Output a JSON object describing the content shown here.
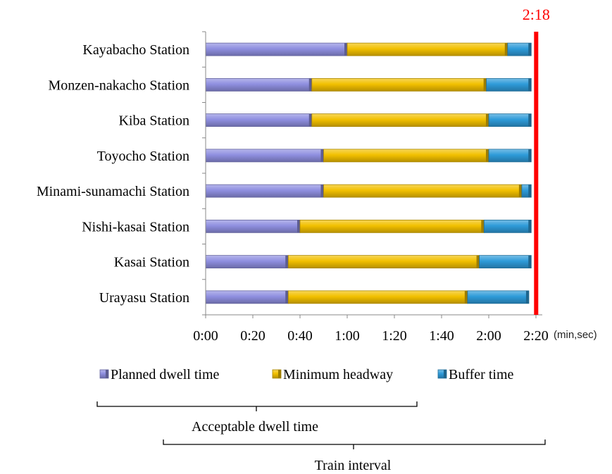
{
  "chart_data": {
    "type": "bar",
    "orientation": "horizontal",
    "stacked": true,
    "categories": [
      "Kayabacho Station",
      "Monzen-nakacho Station",
      "Kiba Station",
      "Toyocho Station",
      "Minami-sunamachi Station",
      "Nishi-kasai Station",
      "Kasai Station",
      "Urayasu Station"
    ],
    "series": [
      {
        "name": "Planned dwell time",
        "color": "#8f8fe0",
        "values": [
          60,
          45,
          45,
          50,
          50,
          40,
          35,
          35
        ]
      },
      {
        "name": "Minimum headway",
        "color": "#f2c000",
        "values": [
          68,
          74,
          75,
          70,
          84,
          78,
          81,
          76
        ]
      },
      {
        "name": "Buffer time",
        "color": "#2e9bd9",
        "values": [
          10,
          19,
          18,
          18,
          4,
          20,
          22,
          26
        ]
      }
    ],
    "x_ticks": [
      "0:00",
      "0:20",
      "0:40",
      "1:00",
      "1:20",
      "1:40",
      "2:00",
      "2:20"
    ],
    "xlim": [
      0,
      140
    ],
    "x_unit_label": "(min,sec)",
    "reference_line": {
      "value": 138,
      "label": "2:18",
      "color": "#ff0000"
    },
    "legend_position": "bottom"
  },
  "annotations": {
    "acceptable_label": "Acceptable dwell time",
    "interval_label": "Train interval"
  }
}
